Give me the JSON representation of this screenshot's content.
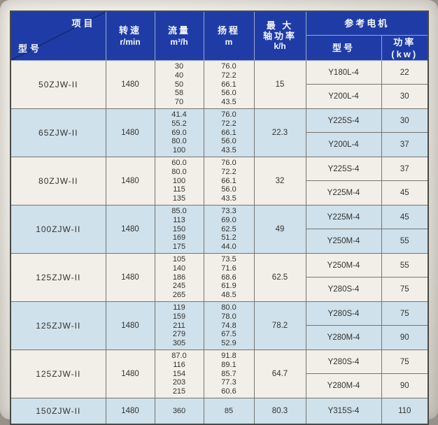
{
  "colors": {
    "header_blue": "#1f3ca6",
    "header_diagonal": "#142e80",
    "row_cream": "#f2efe9",
    "row_blue": "#cfe1eb",
    "border": "#75756e",
    "page_background": "#eae7e1"
  },
  "table": {
    "header": {
      "corner_top": "项目",
      "corner_bottom": "型号",
      "speed": "转速",
      "speed_unit": "r/min",
      "flow": "流量",
      "flow_unit": "m³/h",
      "head": "扬程",
      "head_unit": "m",
      "max_power_line1": "最 大",
      "max_power_line2": "轴功率",
      "max_power_unit": "k/h",
      "motor_group": "参考电机",
      "motor_model": "型号",
      "motor_power": "功率(kw)"
    },
    "rows": [
      {
        "model": "50ZJW-II",
        "speed": "1480",
        "flows": [
          "30",
          "40",
          "50",
          "58",
          "70"
        ],
        "heads": [
          "76.0",
          "72.2",
          "66.1",
          "56.0",
          "43.5"
        ],
        "max_power": "15",
        "motors": [
          {
            "model": "Y180L-4",
            "power": "22"
          },
          {
            "model": "Y200L-4",
            "power": "30"
          }
        ],
        "shade": "cream"
      },
      {
        "model": "65ZJW-II",
        "speed": "1480",
        "flows": [
          "41.4",
          "55.2",
          "69.0",
          "80.0",
          "100"
        ],
        "heads": [
          "76.0",
          "72.2",
          "66.1",
          "56.0",
          "43.5"
        ],
        "max_power": "22.3",
        "motors": [
          {
            "model": "Y225S-4",
            "power": "30"
          },
          {
            "model": "Y200L-4",
            "power": "37"
          }
        ],
        "shade": "blue"
      },
      {
        "model": "80ZJW-II",
        "speed": "1480",
        "flows": [
          "60.0",
          "80.0",
          "100",
          "115",
          "135"
        ],
        "heads": [
          "76.0",
          "72.2",
          "66.1",
          "56.0",
          "43.5"
        ],
        "max_power": "32",
        "motors": [
          {
            "model": "Y225S-4",
            "power": "37"
          },
          {
            "model": "Y225M-4",
            "power": "45"
          }
        ],
        "shade": "cream"
      },
      {
        "model": "100ZJW-II",
        "speed": "1480",
        "flows": [
          "85.0",
          "113",
          "150",
          "169",
          "175"
        ],
        "heads": [
          "73.3",
          "69.0",
          "62.5",
          "51.2",
          "44.0"
        ],
        "max_power": "49",
        "motors": [
          {
            "model": "Y225M-4",
            "power": "45"
          },
          {
            "model": "Y250M-4",
            "power": "55"
          }
        ],
        "shade": "blue"
      },
      {
        "model": "125ZJW-II",
        "speed": "1480",
        "flows": [
          "105",
          "140",
          "186",
          "245",
          "265"
        ],
        "heads": [
          "73.5",
          "71.6",
          "68.6",
          "61.9",
          "48.5"
        ],
        "max_power": "62.5",
        "motors": [
          {
            "model": "Y250M-4",
            "power": "55"
          },
          {
            "model": "Y280S-4",
            "power": "75"
          }
        ],
        "shade": "cream"
      },
      {
        "model": "125ZJW-II",
        "speed": "1480",
        "flows": [
          "119",
          "159",
          "211",
          "279",
          "305"
        ],
        "heads": [
          "80.0",
          "78.0",
          "74.8",
          "67.5",
          "52.9"
        ],
        "max_power": "78.2",
        "motors": [
          {
            "model": "Y280S-4",
            "power": "75"
          },
          {
            "model": "Y280M-4",
            "power": "90"
          }
        ],
        "shade": "blue"
      },
      {
        "model": "125ZJW-II",
        "speed": "1480",
        "flows": [
          "87.0",
          "116",
          "154",
          "203",
          "215"
        ],
        "heads": [
          "91.8",
          "89.1",
          "85.7",
          "77.3",
          "60.6"
        ],
        "max_power": "64.7",
        "motors": [
          {
            "model": "Y280S-4",
            "power": "75"
          },
          {
            "model": "Y280M-4",
            "power": "90"
          }
        ],
        "shade": "cream"
      },
      {
        "model": "150ZJW-II",
        "speed": "1480",
        "flows": [
          "360"
        ],
        "heads": [
          "85"
        ],
        "max_power": "80.3",
        "motors": [
          {
            "model": "Y315S-4",
            "power": "110"
          }
        ],
        "shade": "blue"
      }
    ]
  }
}
